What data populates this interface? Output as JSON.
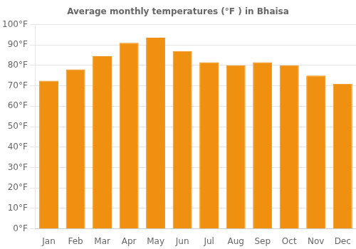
{
  "chart_data": {
    "type": "bar",
    "title": "Average monthly temperatures (°F ) in Bhaisa",
    "categories": [
      "Jan",
      "Feb",
      "Mar",
      "Apr",
      "May",
      "Jun",
      "Jul",
      "Aug",
      "Sep",
      "Oct",
      "Nov",
      "Dec"
    ],
    "values": [
      72.5,
      78,
      84.5,
      91,
      93.5,
      87,
      81.5,
      80,
      81.5,
      80,
      75,
      71
    ],
    "color": "#F09010",
    "ylim": [
      0,
      100
    ],
    "yticks": [
      {
        "value": 0,
        "label": "0°F"
      },
      {
        "value": 10,
        "label": "10°F"
      },
      {
        "value": 20,
        "label": "20°F"
      },
      {
        "value": 30,
        "label": "30°F"
      },
      {
        "value": 40,
        "label": "40°F"
      },
      {
        "value": 50,
        "label": "50°F"
      },
      {
        "value": 60,
        "label": "60°F"
      },
      {
        "value": 70,
        "label": "70°F"
      },
      {
        "value": 80,
        "label": "80°F"
      },
      {
        "value": 90,
        "label": "90°F"
      },
      {
        "value": 100,
        "label": "100°F"
      }
    ],
    "grid": true
  }
}
